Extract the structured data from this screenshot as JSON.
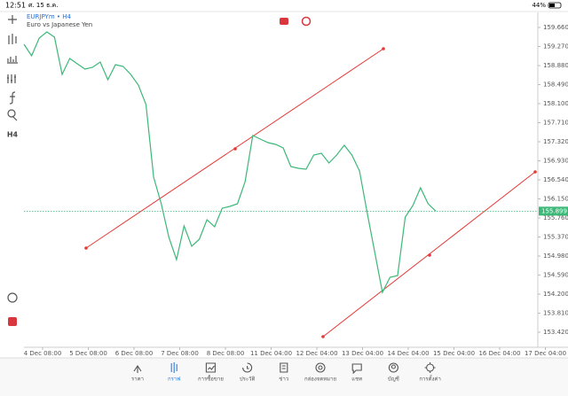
{
  "status_bar": {
    "time": "12:51",
    "date": "ศ. 15 ธ.ค.",
    "battery": "44%"
  },
  "chart_data": {
    "type": "line",
    "title": "EURJPYm • H4",
    "subtitle": "Euro vs Japanese Yen",
    "color": "#3cb878",
    "x_labels": [
      "4 Dec 08:00",
      "5 Dec 08:00",
      "6 Dec 08:00",
      "7 Dec 08:00",
      "8 Dec 08:00",
      "11 Dec 04:00",
      "12 Dec 04:00",
      "13 Dec 04:00",
      "14 Dec 04:00",
      "15 Dec 04:00",
      "16 Dec 04:00",
      "17 Dec 04:00"
    ],
    "values": [
      159.315,
      159.08,
      159.442,
      159.569,
      159.46,
      158.699,
      159.025,
      158.916,
      158.807,
      158.844,
      158.953,
      158.59,
      158.898,
      158.862,
      158.699,
      158.481,
      158.082,
      156.594,
      156.05,
      155.361,
      154.907,
      155.597,
      155.179,
      155.325,
      155.724,
      155.579,
      155.959,
      155.996,
      156.05,
      156.504,
      157.447,
      157.374,
      157.302,
      157.266,
      157.193,
      156.812,
      156.776,
      156.758,
      157.048,
      157.084,
      156.885,
      157.048,
      157.247,
      157.048,
      156.721,
      155.869,
      155.052,
      154.236,
      154.544,
      154.58,
      155.778,
      156.014,
      156.377,
      156.05,
      155.899
    ],
    "current_price": 155.899,
    "ylim": [
      153.112,
      159.968
    ],
    "yticks": [
      {
        "value": 159.66,
        "label": "159.660"
      },
      {
        "value": 159.27,
        "label": "159.270"
      },
      {
        "value": 158.88,
        "label": "158.880"
      },
      {
        "value": 158.49,
        "label": "158.490"
      },
      {
        "value": 158.1,
        "label": "158.100"
      },
      {
        "value": 157.71,
        "label": "157.710"
      },
      {
        "value": 157.32,
        "label": "157.320"
      },
      {
        "value": 156.93,
        "label": "156.930"
      },
      {
        "value": 156.54,
        "label": "156.540"
      },
      {
        "value": 156.15,
        "label": "156.150"
      },
      {
        "value": 155.76,
        "label": "155.760"
      },
      {
        "value": 155.37,
        "label": "155.370"
      },
      {
        "value": 154.98,
        "label": "154.980"
      },
      {
        "value": 154.59,
        "label": "154.590"
      },
      {
        "value": 154.2,
        "label": "154.200"
      },
      {
        "value": 153.81,
        "label": "153.810"
      },
      {
        "value": 153.42,
        "label": "153.420"
      }
    ]
  },
  "toolbar": {
    "timeframe": "H4"
  },
  "tabs": [
    "ราคา",
    "กราฟ",
    "การซื้อขาย",
    "ประวัติ",
    "ข่าว",
    "กล่องจดหมาย",
    "แชท",
    "บัญชี",
    "การตั้งค่า"
  ]
}
